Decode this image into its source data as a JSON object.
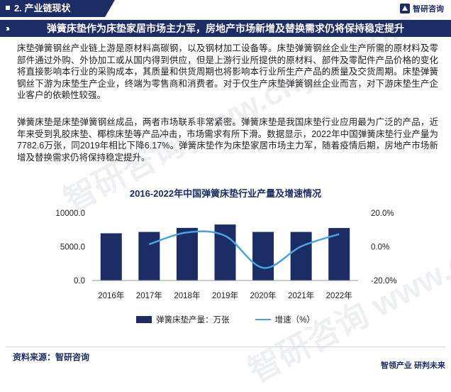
{
  "section": {
    "title": "2. 产业链现状"
  },
  "logo": {
    "text": "智研咨询"
  },
  "banner": {
    "title": "弹簧床垫作为床垫家居市场主力军，房地产市场新增及替换需求仍将保持稳定提升"
  },
  "paragraphs": [
    "床垫弹簧钢丝产业链上游是原材料高碳钢，以及钢材加工设备等。床垫弹簧钢丝企业生产所需的原材料及零部件通过外购、外协加工或从国内得到供应，但是上游行业所提供的原材料、部件及零配件产品价格的变化将直接影响本行业的采购成本，其质量和供货周期也将影响本行业所生产产品的质量及交货周期。床垫弹簧钢丝下游为床垫生产企业，终端为零售商和消费者。对于仅生产床垫弹簧钢丝企业而言，对下游床垫生产企业客户的依赖性较强。",
    "弹簧床垫是床垫弹簧钢丝成品，两者市场联系非常紧密。弹簧床垫是我国床垫行业应用最为广泛的产品，近年来受到乳胶床垫、椰棕床垫等产品冲击，市场需求有所下滑。数据显示，2022年中国弹簧床垫行业产量为7782.6万张，同2019年相比下降6.17%。弹簧床垫作为床垫家居市场主力军，随着疫情后期，房地产市场新增及替换需求仍将保持稳定提升。"
  ],
  "chart_data": {
    "type": "bar",
    "title": "2016-2022年中国弹簧床垫行业产量及增速情况",
    "categories": [
      "2016年",
      "2017年",
      "2018年",
      "2019年",
      "2020年",
      "2021年",
      "2022年"
    ],
    "series": [
      {
        "name": "弹簧床垫产量：万张",
        "type": "bar",
        "axis": "left",
        "color": "#1c2d66",
        "values": [
          7000,
          7200,
          7800,
          8300,
          7200,
          7200,
          7783
        ]
      },
      {
        "name": "增速（%）",
        "type": "line",
        "axis": "right",
        "color": "#4aa3df",
        "values": [
          null,
          1.5,
          8.5,
          6.5,
          -12.5,
          0.2,
          7.5
        ]
      }
    ],
    "y_left": {
      "ticks": [
        "0.0",
        "5000.0",
        "10000.0"
      ],
      "range": [
        0,
        10000
      ]
    },
    "y_right": {
      "ticks": [
        "-20.0%",
        "0.0%",
        "20.0%"
      ],
      "range": [
        -20,
        20
      ]
    },
    "legend_position": "bottom"
  },
  "source": {
    "text": "资料来源：智研咨询"
  },
  "footer": {
    "brand": "智领产业 研判未来"
  }
}
